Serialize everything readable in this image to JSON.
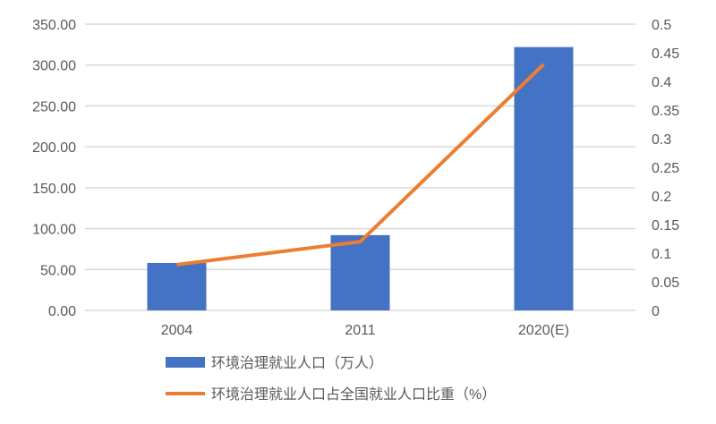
{
  "chart_data": {
    "type": "bar+line",
    "categories": [
      "2004",
      "2011",
      "2020(E)"
    ],
    "series": [
      {
        "name": "环境治理就业人口（万人）",
        "type": "bar",
        "axis": "left",
        "values": [
          58,
          92,
          322
        ],
        "color": "#4472C4"
      },
      {
        "name": "环境治理就业人口占全国就业人口比重（%）",
        "type": "line",
        "axis": "right",
        "values": [
          0.08,
          0.12,
          0.43
        ],
        "color": "#ED7D31"
      }
    ],
    "y_left": {
      "range": [
        0,
        350
      ],
      "ticks": [
        "0.00",
        "50.00",
        "100.00",
        "150.00",
        "200.00",
        "250.00",
        "300.00",
        "350.00"
      ]
    },
    "y_right": {
      "range": [
        0,
        0.5
      ],
      "ticks": [
        "0",
        "0.05",
        "0.1",
        "0.15",
        "0.2",
        "0.25",
        "0.3",
        "0.35",
        "0.4",
        "0.45",
        "0.5"
      ]
    },
    "grid": true,
    "legend": "bottom"
  }
}
